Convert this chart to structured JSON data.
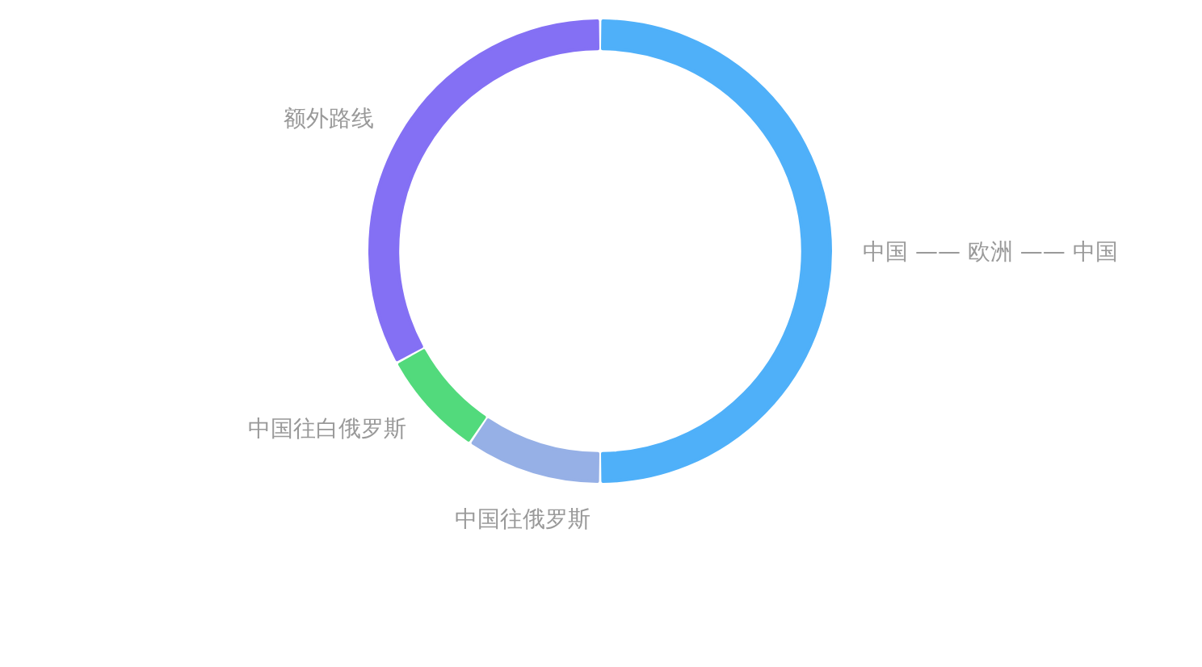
{
  "chart_data": {
    "type": "donut",
    "categories": [
      "中国 —— 欧洲 —— 中国",
      "中国往俄罗斯",
      "中国往白俄罗斯",
      "额外路线"
    ],
    "values": [
      50,
      9.5,
      7.5,
      33
    ],
    "colors": [
      "#4fb0f9",
      "#96b0e6",
      "#52da7c",
      "#8470f4"
    ]
  }
}
